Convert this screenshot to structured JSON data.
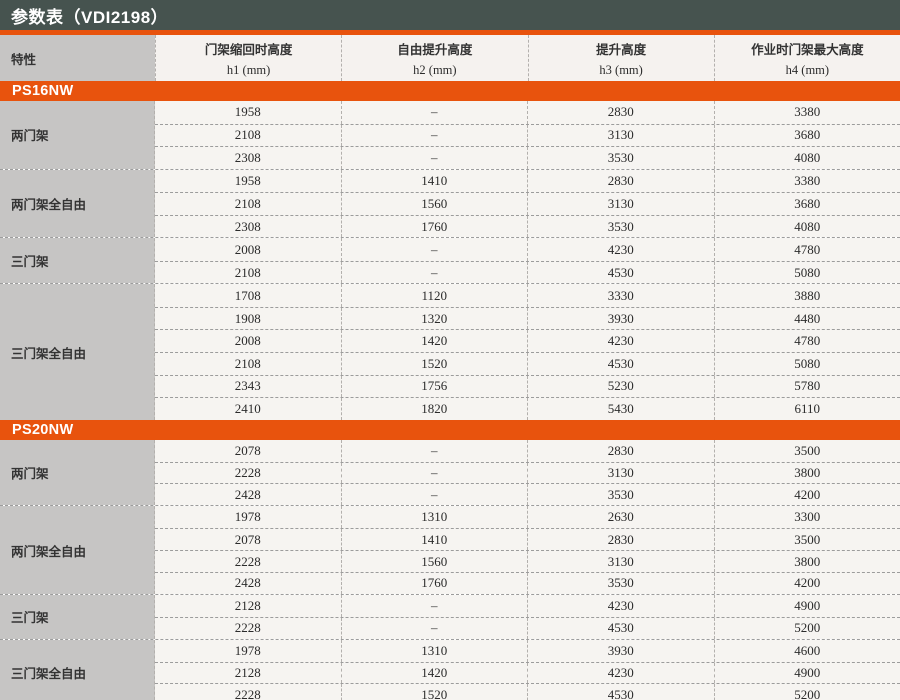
{
  "title": "参数表（VDI2198）",
  "header": {
    "feature_label": "特性",
    "columns": [
      {
        "name": "门架缩回时高度",
        "sub": "h1 (mm)"
      },
      {
        "name": "自由提升高度",
        "sub": "h2 (mm)"
      },
      {
        "name": "提升高度",
        "sub": "h3 (mm)"
      },
      {
        "name": "作业时门架最大高度",
        "sub": "h4 (mm)"
      }
    ]
  },
  "sections": [
    {
      "model": "PS16NW",
      "groups": [
        {
          "label": "两门架",
          "rows": [
            [
              "1958",
              "–",
              "2830",
              "3380"
            ],
            [
              "2108",
              "–",
              "3130",
              "3680"
            ],
            [
              "2308",
              "–",
              "3530",
              "4080"
            ]
          ]
        },
        {
          "label": "两门架全自由",
          "rows": [
            [
              "1958",
              "1410",
              "2830",
              "3380"
            ],
            [
              "2108",
              "1560",
              "3130",
              "3680"
            ],
            [
              "2308",
              "1760",
              "3530",
              "4080"
            ]
          ]
        },
        {
          "label": "三门架",
          "rows": [
            [
              "2008",
              "–",
              "4230",
              "4780"
            ],
            [
              "2108",
              "–",
              "4530",
              "5080"
            ]
          ]
        },
        {
          "label": "三门架全自由",
          "rows": [
            [
              "1708",
              "1120",
              "3330",
              "3880"
            ],
            [
              "1908",
              "1320",
              "3930",
              "4480"
            ],
            [
              "2008",
              "1420",
              "4230",
              "4780"
            ],
            [
              "2108",
              "1520",
              "4530",
              "5080"
            ],
            [
              "2343",
              "1756",
              "5230",
              "5780"
            ],
            [
              "2410",
              "1820",
              "5430",
              "6110"
            ]
          ]
        }
      ]
    },
    {
      "model": "PS20NW",
      "groups": [
        {
          "label": "两门架",
          "rows": [
            [
              "2078",
              "–",
              "2830",
              "3500"
            ],
            [
              "2228",
              "–",
              "3130",
              "3800"
            ],
            [
              "2428",
              "–",
              "3530",
              "4200"
            ]
          ]
        },
        {
          "label": "两门架全自由",
          "rows": [
            [
              "1978",
              "1310",
              "2630",
              "3300"
            ],
            [
              "2078",
              "1410",
              "2830",
              "3500"
            ],
            [
              "2228",
              "1560",
              "3130",
              "3800"
            ],
            [
              "2428",
              "1760",
              "3530",
              "4200"
            ]
          ]
        },
        {
          "label": "三门架",
          "rows": [
            [
              "2128",
              "–",
              "4230",
              "4900"
            ],
            [
              "2228",
              "–",
              "4530",
              "5200"
            ]
          ]
        },
        {
          "label": "三门架全自由",
          "rows": [
            [
              "1978",
              "1310",
              "3930",
              "4600"
            ],
            [
              "2128",
              "1420",
              "4230",
              "4900"
            ],
            [
              "2228",
              "1520",
              "4530",
              "5200"
            ]
          ]
        }
      ]
    }
  ],
  "colors": {
    "title_bar": "#46534f",
    "accent_orange": "#e8530d",
    "feature_column_gray": "#c6c5c4",
    "cell_background": "#f6f4f1",
    "number_text": "#2b2b2b"
  }
}
